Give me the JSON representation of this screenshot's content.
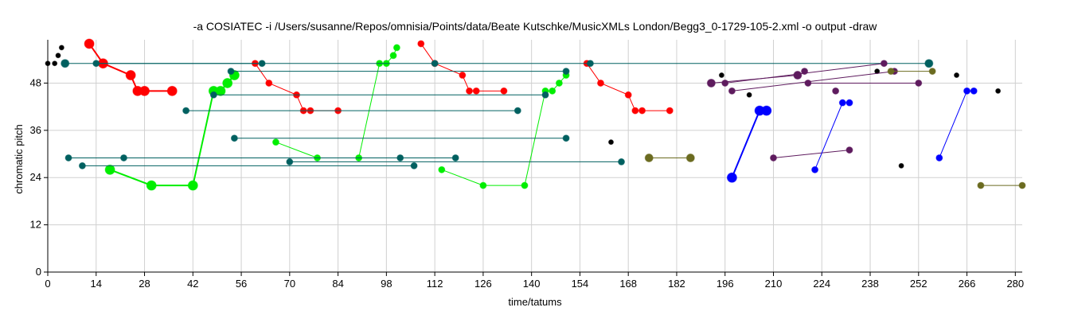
{
  "chart_data": {
    "type": "scatter",
    "title": "-a COSIATEC -i /Users/susanne/Repos/omnisia/Points/data/Beate Kutschke/MusicXMLs London/Begg3_0-1729-105-2.xml -o output -draw",
    "xlabel": "time/tatums",
    "ylabel": "chromatic pitch",
    "xlim": [
      0,
      282
    ],
    "ylim": [
      0,
      59
    ],
    "xticks": [
      "0",
      "14",
      "28",
      "42",
      "56",
      "70",
      "84",
      "98",
      "112",
      "126",
      "140",
      "154",
      "168",
      "182",
      "196",
      "210",
      "224",
      "238",
      "252",
      "266",
      "280"
    ],
    "yticks": [
      "0",
      "12",
      "24",
      "36",
      "48"
    ],
    "grid": true,
    "series": [
      {
        "color": "#ff0000",
        "size": 6,
        "width": 2,
        "segments": [
          [
            [
              12,
              58
            ],
            [
              16,
              53
            ],
            [
              24,
              50
            ],
            [
              26,
              46
            ],
            [
              28,
              46
            ],
            [
              36,
              46
            ]
          ]
        ]
      },
      {
        "color": "#ff0000",
        "size": 4,
        "width": 1,
        "segments": [
          [
            [
              60,
              53
            ],
            [
              64,
              48
            ],
            [
              72,
              45
            ],
            [
              74,
              41
            ],
            [
              76,
              41
            ],
            [
              84,
              41
            ]
          ],
          [
            [
              108,
              58
            ],
            [
              112,
              53
            ],
            [
              120,
              50
            ],
            [
              122,
              46
            ],
            [
              124,
              46
            ],
            [
              132,
              46
            ]
          ],
          [
            [
              156,
              53
            ],
            [
              160,
              48
            ],
            [
              168,
              45
            ],
            [
              170,
              41
            ],
            [
              172,
              41
            ],
            [
              180,
              41
            ]
          ]
        ]
      },
      {
        "color": "#00ee00",
        "size": 6,
        "width": 2,
        "segments": [
          [
            [
              18,
              26
            ],
            [
              30,
              22
            ],
            [
              42,
              22
            ],
            [
              48,
              46
            ],
            [
              50,
              46
            ],
            [
              52,
              48
            ],
            [
              54,
              50
            ]
          ]
        ]
      },
      {
        "color": "#00ee00",
        "size": 4,
        "width": 1,
        "segments": [
          [
            [
              66,
              33
            ],
            [
              78,
              29
            ],
            [
              90,
              29
            ],
            [
              96,
              53
            ],
            [
              98,
              53
            ],
            [
              100,
              55
            ],
            [
              101,
              57
            ]
          ],
          [
            [
              114,
              26
            ],
            [
              126,
              22
            ],
            [
              138,
              22
            ],
            [
              144,
              46
            ],
            [
              146,
              46
            ],
            [
              148,
              48
            ],
            [
              150,
              50
            ]
          ]
        ]
      },
      {
        "color": "#006060",
        "size": 5,
        "width": 1,
        "segments": [
          [
            [
              5,
              53
            ],
            [
              255,
              53
            ]
          ]
        ]
      },
      {
        "color": "#006060",
        "size": 4,
        "width": 1,
        "segments": [
          [
            [
              14,
              53
            ],
            [
              62,
              53
            ]
          ],
          [
            [
              53,
              51
            ],
            [
              150,
              51
            ]
          ],
          [
            [
              48,
              45
            ],
            [
              144,
              45
            ]
          ],
          [
            [
              40,
              41
            ],
            [
              136,
              41
            ]
          ],
          [
            [
              54,
              34
            ],
            [
              150,
              34
            ]
          ],
          [
            [
              6,
              29
            ],
            [
              118,
              29
            ]
          ],
          [
            [
              10,
              27
            ],
            [
              106,
              27
            ]
          ],
          [
            [
              70,
              28
            ],
            [
              166,
              28
            ]
          ],
          [
            [
              22,
              29
            ]
          ],
          [
            [
              102,
              29
            ]
          ],
          [
            [
              112,
              53
            ]
          ],
          [
            [
              157,
              53
            ]
          ]
        ]
      },
      {
        "color": "#000000",
        "size": 3,
        "width": 1,
        "segments": [
          [
            [
              0,
              53
            ]
          ],
          [
            [
              2,
              53
            ]
          ],
          [
            [
              3,
              55
            ]
          ],
          [
            [
              4,
              57
            ]
          ],
          [
            [
              163,
              33
            ]
          ],
          [
            [
              195,
              50
            ]
          ],
          [
            [
              203,
              45
            ]
          ],
          [
            [
              240,
              51
            ]
          ],
          [
            [
              247,
              27
            ]
          ],
          [
            [
              263,
              50
            ]
          ],
          [
            [
              275,
              46
            ]
          ]
        ]
      },
      {
        "color": "#5e1b5e",
        "size": 5,
        "width": 1,
        "segments": [
          [
            [
              192,
              48
            ],
            [
              217,
              50
            ]
          ]
        ]
      },
      {
        "color": "#5e1b5e",
        "size": 4,
        "width": 1,
        "segments": [
          [
            [
              196,
              48
            ],
            [
              242,
              53
            ]
          ],
          [
            [
              198,
              46
            ],
            [
              245,
              51
            ]
          ],
          [
            [
              220,
              48
            ],
            [
              252,
              48
            ]
          ],
          [
            [
              210,
              29
            ],
            [
              232,
              31
            ]
          ],
          [
            [
              219,
              51
            ]
          ],
          [
            [
              228,
              46
            ]
          ]
        ]
      },
      {
        "color": "#0000ff",
        "size": 6,
        "width": 2,
        "segments": [
          [
            [
              198,
              24
            ],
            [
              206,
              41
            ],
            [
              208,
              41
            ]
          ]
        ]
      },
      {
        "color": "#0000ff",
        "size": 4,
        "width": 1,
        "segments": [
          [
            [
              222,
              26
            ],
            [
              230,
              43
            ],
            [
              232,
              43
            ]
          ],
          [
            [
              258,
              29
            ],
            [
              266,
              46
            ],
            [
              268,
              46
            ]
          ]
        ]
      },
      {
        "color": "#6b6b20",
        "size": 5,
        "width": 1,
        "segments": [
          [
            [
              174,
              29
            ],
            [
              186,
              29
            ]
          ]
        ]
      },
      {
        "color": "#6b6b20",
        "size": 4,
        "width": 1,
        "segments": [
          [
            [
              244,
              51
            ],
            [
              256,
              51
            ]
          ],
          [
            [
              270,
              22
            ],
            [
              282,
              22
            ]
          ]
        ]
      }
    ]
  }
}
